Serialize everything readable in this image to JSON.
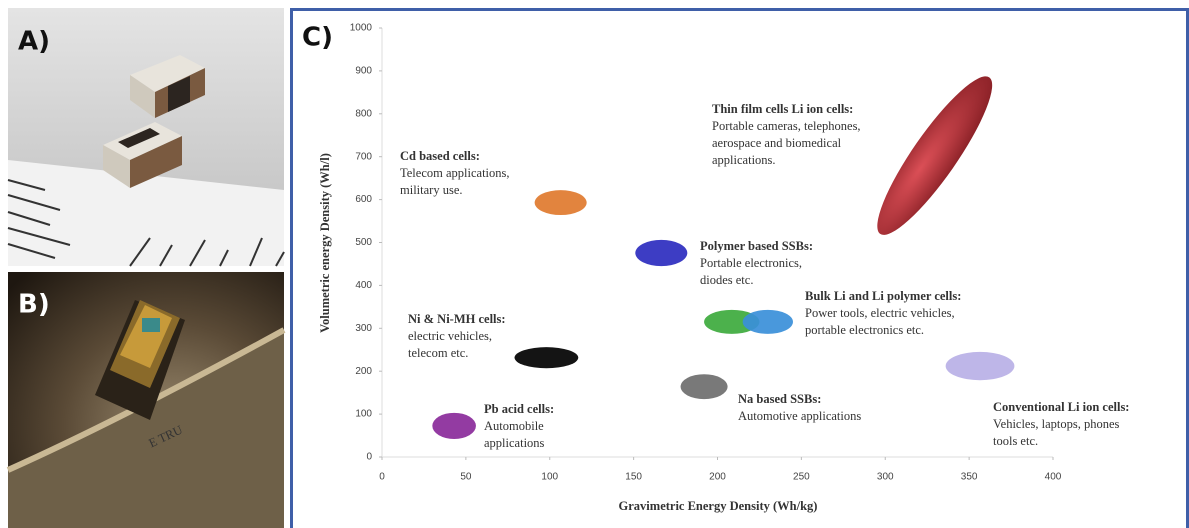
{
  "panel_labels": [
    "A)",
    "B)",
    "C)"
  ],
  "chart_data": {
    "type": "region",
    "x_label": "Gravimetric Energy Density (Wh/kg)",
    "y_label": "Volumetric energy Density (Wh/l)",
    "xlim": [
      0,
      400
    ],
    "xticks": [
      0,
      50,
      100,
      150,
      200,
      250,
      300,
      350,
      400
    ],
    "ylim": [
      0,
      1000
    ],
    "yticks": [
      0,
      100,
      200,
      300,
      400,
      500,
      600,
      700,
      800,
      900,
      1000
    ],
    "regions": [
      {
        "name": "Thin film cells Li ion cells:",
        "description": [
          "Portable cameras, telephones,",
          "aerospace and biomedical",
          "applications."
        ],
        "parts": [
          {
            "color": "#a3121a",
            "orientation": "diagonal",
            "x": [
              297,
              362
            ],
            "y": [
              520,
              885
            ]
          }
        ]
      },
      {
        "name": "Cd based cells:",
        "description": [
          "Telecom applications,",
          "military use."
        ],
        "parts": [
          {
            "color": "#e07a2e",
            "x": [
              91,
              122
            ],
            "y": [
              564,
              622
            ]
          }
        ]
      },
      {
        "name": "Polymer based SSBs:",
        "description": [
          "Portable electronics,",
          "diodes etc."
        ],
        "parts": [
          {
            "color": "#2d2dbf",
            "x": [
              151,
              182
            ],
            "y": [
              445,
              506
            ]
          }
        ]
      },
      {
        "name": "Bulk Li and Li polymer cells:",
        "description": [
          "Power tools, electric vehicles,",
          "portable electronics etc."
        ],
        "parts": [
          {
            "color": "#3daa3d",
            "x": [
              192,
              225
            ],
            "y": [
              287,
              343
            ]
          },
          {
            "color": "#3a8fd9",
            "x": [
              215,
              245
            ],
            "y": [
              287,
              343
            ]
          }
        ]
      },
      {
        "name": "Ni & Ni-MH cells:",
        "description": [
          "electric vehicles,",
          "telecom etc."
        ],
        "parts": [
          {
            "color": "#000000",
            "x": [
              79,
              117
            ],
            "y": [
              207,
              256
            ]
          }
        ]
      },
      {
        "name": "Na based SSBs:",
        "description": [
          "Automotive applications"
        ],
        "parts": [
          {
            "color": "#6e6e6e",
            "x": [
              178,
              206
            ],
            "y": [
              135,
              193
            ]
          }
        ]
      },
      {
        "name": "Pb acid cells:",
        "description": [
          "Automobile",
          "applications"
        ],
        "parts": [
          {
            "color": "#8a2a9a",
            "x": [
              30,
              56
            ],
            "y": [
              42,
              103
            ]
          }
        ]
      },
      {
        "name": "Conventional Li ion cells:",
        "description": [
          "Vehicles, laptops, phones",
          "tools etc."
        ],
        "parts": [
          {
            "color": "#b8b0e6",
            "x": [
              336,
              377
            ],
            "y": [
              179,
              245
            ]
          }
        ]
      }
    ]
  }
}
